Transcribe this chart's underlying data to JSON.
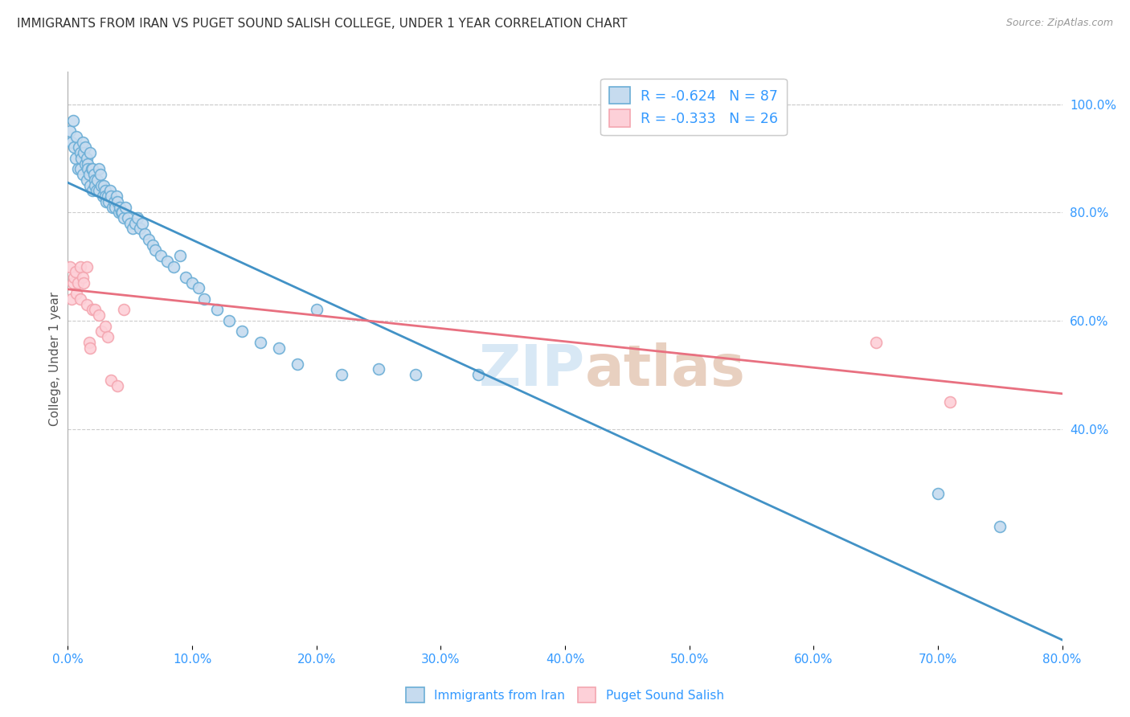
{
  "title": "IMMIGRANTS FROM IRAN VS PUGET SOUND SALISH COLLEGE, UNDER 1 YEAR CORRELATION CHART",
  "source": "Source: ZipAtlas.com",
  "ylabel": "College, Under 1 year",
  "legend_label1": "Immigrants from Iran",
  "legend_label2": "Puget Sound Salish",
  "r1": -0.624,
  "n1": 87,
  "r2": -0.333,
  "n2": 26,
  "blue_color": "#6baed6",
  "blue_light": "#c6dbef",
  "pink_color": "#f4a6b0",
  "pink_light": "#fdd0d8",
  "line_blue": "#4292c6",
  "line_pink": "#e87080",
  "text_blue": "#3399ff",
  "watermark_color": "#d8e8f5",
  "xmin": 0.0,
  "xmax": 0.8,
  "ymin": 0.0,
  "ymax": 1.06,
  "xtick_positions": [
    0.0,
    0.1,
    0.2,
    0.3,
    0.4,
    0.5,
    0.6,
    0.7,
    0.8
  ],
  "yticks_right": [
    0.4,
    0.6,
    0.8,
    1.0
  ],
  "blue_scatter_x": [
    0.002,
    0.003,
    0.004,
    0.005,
    0.006,
    0.007,
    0.008,
    0.009,
    0.01,
    0.01,
    0.011,
    0.012,
    0.012,
    0.013,
    0.014,
    0.014,
    0.015,
    0.015,
    0.016,
    0.016,
    0.017,
    0.018,
    0.018,
    0.019,
    0.02,
    0.02,
    0.021,
    0.022,
    0.022,
    0.023,
    0.024,
    0.025,
    0.025,
    0.026,
    0.027,
    0.028,
    0.029,
    0.03,
    0.03,
    0.031,
    0.032,
    0.033,
    0.034,
    0.035,
    0.036,
    0.037,
    0.038,
    0.039,
    0.04,
    0.041,
    0.042,
    0.043,
    0.044,
    0.045,
    0.046,
    0.048,
    0.05,
    0.052,
    0.054,
    0.056,
    0.058,
    0.06,
    0.062,
    0.065,
    0.068,
    0.07,
    0.075,
    0.08,
    0.085,
    0.09,
    0.095,
    0.1,
    0.105,
    0.11,
    0.12,
    0.13,
    0.14,
    0.155,
    0.17,
    0.185,
    0.2,
    0.22,
    0.25,
    0.28,
    0.33,
    0.7,
    0.75
  ],
  "blue_scatter_y": [
    0.95,
    0.93,
    0.97,
    0.92,
    0.9,
    0.94,
    0.88,
    0.92,
    0.91,
    0.88,
    0.9,
    0.93,
    0.87,
    0.91,
    0.89,
    0.92,
    0.9,
    0.86,
    0.89,
    0.88,
    0.87,
    0.91,
    0.85,
    0.88,
    0.88,
    0.84,
    0.87,
    0.86,
    0.85,
    0.84,
    0.86,
    0.88,
    0.84,
    0.87,
    0.85,
    0.83,
    0.85,
    0.84,
    0.83,
    0.82,
    0.83,
    0.82,
    0.84,
    0.83,
    0.81,
    0.82,
    0.81,
    0.83,
    0.82,
    0.8,
    0.81,
    0.8,
    0.8,
    0.79,
    0.81,
    0.79,
    0.78,
    0.77,
    0.78,
    0.79,
    0.77,
    0.78,
    0.76,
    0.75,
    0.74,
    0.73,
    0.72,
    0.71,
    0.7,
    0.72,
    0.68,
    0.67,
    0.66,
    0.64,
    0.62,
    0.6,
    0.58,
    0.56,
    0.55,
    0.52,
    0.62,
    0.5,
    0.51,
    0.5,
    0.5,
    0.28,
    0.22
  ],
  "pink_scatter_x": [
    0.002,
    0.003,
    0.004,
    0.005,
    0.006,
    0.007,
    0.008,
    0.01,
    0.01,
    0.012,
    0.013,
    0.015,
    0.015,
    0.017,
    0.018,
    0.02,
    0.022,
    0.025,
    0.027,
    0.03,
    0.032,
    0.035,
    0.04,
    0.045,
    0.65,
    0.71
  ],
  "pink_scatter_y": [
    0.7,
    0.64,
    0.67,
    0.68,
    0.69,
    0.65,
    0.67,
    0.7,
    0.64,
    0.68,
    0.67,
    0.7,
    0.63,
    0.56,
    0.55,
    0.62,
    0.62,
    0.61,
    0.58,
    0.59,
    0.57,
    0.49,
    0.48,
    0.62,
    0.56,
    0.45
  ],
  "blue_line_x": [
    0.0,
    0.8
  ],
  "blue_line_y": [
    0.855,
    0.01
  ],
  "pink_line_x": [
    0.0,
    0.8
  ],
  "pink_line_y": [
    0.658,
    0.465
  ]
}
